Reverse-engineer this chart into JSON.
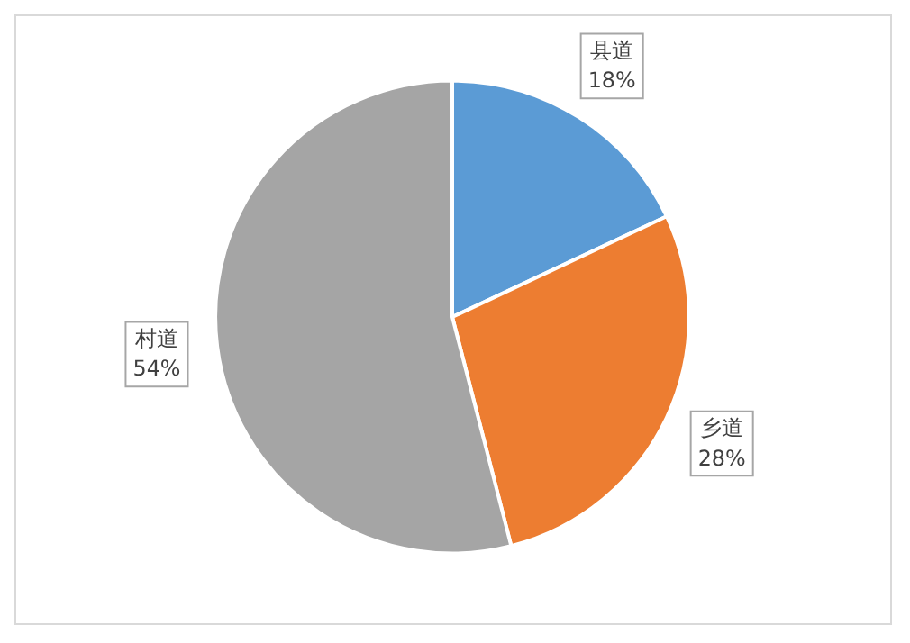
{
  "chart_data": {
    "type": "pie",
    "categories": [
      "县道",
      "乡道",
      "村道"
    ],
    "values": [
      18,
      28,
      54
    ],
    "value_labels": [
      "18%",
      "28%",
      "54%"
    ],
    "colors": [
      "#5b9bd5",
      "#ed7d31",
      "#a5a5a5"
    ],
    "legend": false
  }
}
